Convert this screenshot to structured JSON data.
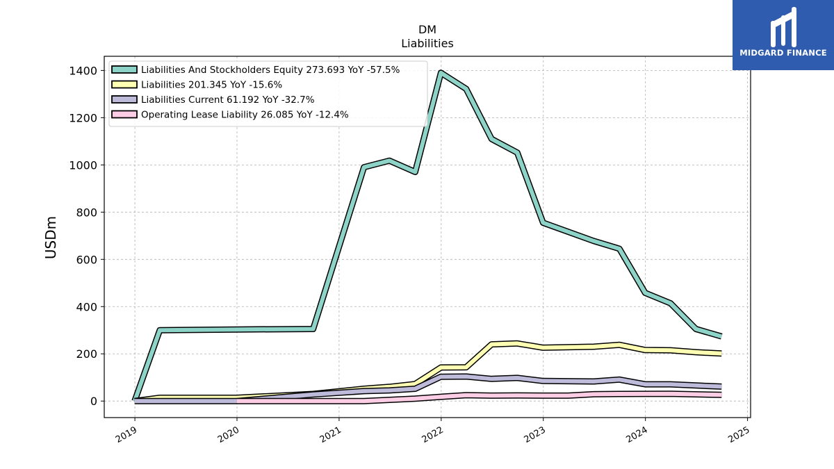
{
  "brand": {
    "name": "MIDGARD FINANCE",
    "color": "#2f5cae"
  },
  "chart_data": {
    "type": "line",
    "title": "DM",
    "subtitle": "Liabilities",
    "ylabel": "USDm",
    "xlabel": "",
    "ylim": [
      -70,
      1460
    ],
    "yticks": [
      0,
      200,
      400,
      600,
      800,
      1000,
      1200,
      1400
    ],
    "xlim": [
      2018.7,
      2025.03
    ],
    "xticks": [
      "2019",
      "2020",
      "2021",
      "2022",
      "2023",
      "2024",
      "2025"
    ],
    "grid": true,
    "legend_position": "top-left",
    "series": [
      {
        "name": "Liabilities And Stockholders Equity  273.693 YoY -57.5%",
        "color": "#8dd3c7",
        "points": [
          [
            "2018-12-31",
            0
          ],
          [
            "2019-03-31",
            300
          ],
          [
            "2019-12-31",
            303
          ],
          [
            "2020-09-30",
            305
          ],
          [
            "2021-03-31",
            990
          ],
          [
            "2021-06-30",
            1018
          ],
          [
            "2021-09-30",
            970
          ],
          [
            "2021-12-31",
            1390
          ],
          [
            "2022-03-31",
            1322
          ],
          [
            "2022-06-30",
            1110
          ],
          [
            "2022-09-30",
            1052
          ],
          [
            "2022-12-31",
            755
          ],
          [
            "2023-06-30",
            678
          ],
          [
            "2023-09-30",
            645
          ],
          [
            "2023-12-31",
            458
          ],
          [
            "2024-03-31",
            414
          ],
          [
            "2024-06-30",
            305
          ],
          [
            "2024-09-30",
            273.693
          ]
        ]
      },
      {
        "name": "Liabilities  201.345 YoY -15.6%",
        "color": "#ffffb3",
        "points": [
          [
            "2018-12-31",
            0
          ],
          [
            "2019-03-31",
            14
          ],
          [
            "2019-12-31",
            14
          ],
          [
            "2020-09-30",
            30
          ],
          [
            "2021-03-31",
            52
          ],
          [
            "2021-06-30",
            60
          ],
          [
            "2021-09-30",
            72
          ],
          [
            "2021-12-31",
            142
          ],
          [
            "2022-03-31",
            143
          ],
          [
            "2022-06-30",
            240
          ],
          [
            "2022-09-30",
            244
          ],
          [
            "2022-12-31",
            226
          ],
          [
            "2023-06-30",
            230
          ],
          [
            "2023-09-30",
            238
          ],
          [
            "2023-12-31",
            216
          ],
          [
            "2024-03-31",
            215
          ],
          [
            "2024-06-30",
            207
          ],
          [
            "2024-09-30",
            201.345
          ]
        ]
      },
      {
        "name": "Liabilities Current  61.192 YoY -32.7%",
        "color": "#bebada",
        "points": [
          [
            "2018-12-31",
            0
          ],
          [
            "2019-12-31",
            0
          ],
          [
            "2020-09-30",
            28
          ],
          [
            "2021-03-31",
            42
          ],
          [
            "2021-06-30",
            45
          ],
          [
            "2021-09-30",
            52
          ],
          [
            "2021-12-31",
            103
          ],
          [
            "2022-03-31",
            104
          ],
          [
            "2022-06-30",
            94
          ],
          [
            "2022-09-30",
            98
          ],
          [
            "2022-12-31",
            85
          ],
          [
            "2023-06-30",
            83
          ],
          [
            "2023-09-30",
            91
          ],
          [
            "2023-12-31",
            71
          ],
          [
            "2024-03-31",
            71
          ],
          [
            "2024-06-30",
            66
          ],
          [
            "2024-09-30",
            61.192
          ]
        ]
      },
      {
        "name": "Operating Lease Liability  26.085 YoY -12.4%",
        "color": "#fccde5",
        "points": [
          [
            "2019-12-31",
            0
          ],
          [
            "2021-03-31",
            0
          ],
          [
            "2021-09-30",
            10
          ],
          [
            "2021-12-31",
            18
          ],
          [
            "2022-03-31",
            25
          ],
          [
            "2022-06-30",
            23
          ],
          [
            "2022-09-30",
            24
          ],
          [
            "2022-12-31",
            23
          ],
          [
            "2023-03-31",
            23
          ],
          [
            "2023-06-30",
            29
          ],
          [
            "2023-09-30",
            30
          ],
          [
            "2024-03-31",
            31
          ],
          [
            "2024-09-30",
            26.085
          ]
        ]
      }
    ]
  }
}
